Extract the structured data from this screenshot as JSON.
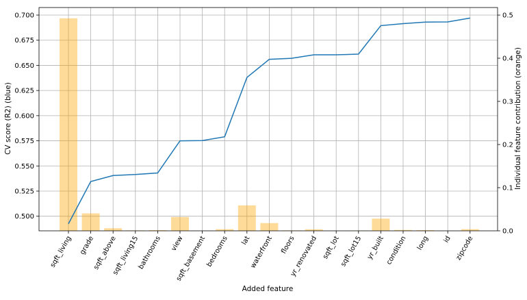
{
  "chart_data": {
    "type": "bar+line",
    "title": "",
    "xlabel": "Added feature",
    "ylabel_left": "CV score (R2) (blue)",
    "ylabel_right": "Individual feature contribution (orange)",
    "categories": [
      "sqft_living",
      "grade",
      "sqft_above",
      "sqft_living15",
      "bathrooms",
      "view",
      "sqft_basement",
      "bedrooms",
      "lat",
      "waterfront",
      "floors",
      "yr_renovated",
      "sqft_lot",
      "sqft_lot15",
      "yr_built",
      "condition",
      "long",
      "id",
      "zipcode"
    ],
    "series": [
      {
        "axis": "left",
        "kind": "line",
        "color": "#1f77b4",
        "values": [
          0.4925,
          0.5345,
          0.5405,
          0.5415,
          0.543,
          0.575,
          0.5752,
          0.579,
          0.638,
          0.656,
          0.657,
          0.6605,
          0.6605,
          0.6612,
          0.6895,
          0.6915,
          0.693,
          0.6932,
          0.697
        ]
      },
      {
        "axis": "right",
        "kind": "bar",
        "color": "#ffa500",
        "opacity": 0.4,
        "values": [
          0.4925,
          0.0405,
          0.006,
          0.001,
          0.0015,
          0.032,
          0.0002,
          0.0038,
          0.059,
          0.018,
          0.001,
          0.0035,
          0.0,
          0.0007,
          0.0283,
          0.002,
          0.0015,
          0.0002,
          0.0038
        ]
      }
    ],
    "ylim_left": [
      0.4855,
      0.7075
    ],
    "ylim_right": [
      0,
      0.5175
    ],
    "yticks_left": [
      "0.500",
      "0.525",
      "0.550",
      "0.575",
      "0.600",
      "0.625",
      "0.650",
      "0.675",
      "0.700"
    ],
    "yticks_right": [
      "0.0",
      "0.1",
      "0.2",
      "0.3",
      "0.4",
      "0.5"
    ],
    "grid": true
  }
}
